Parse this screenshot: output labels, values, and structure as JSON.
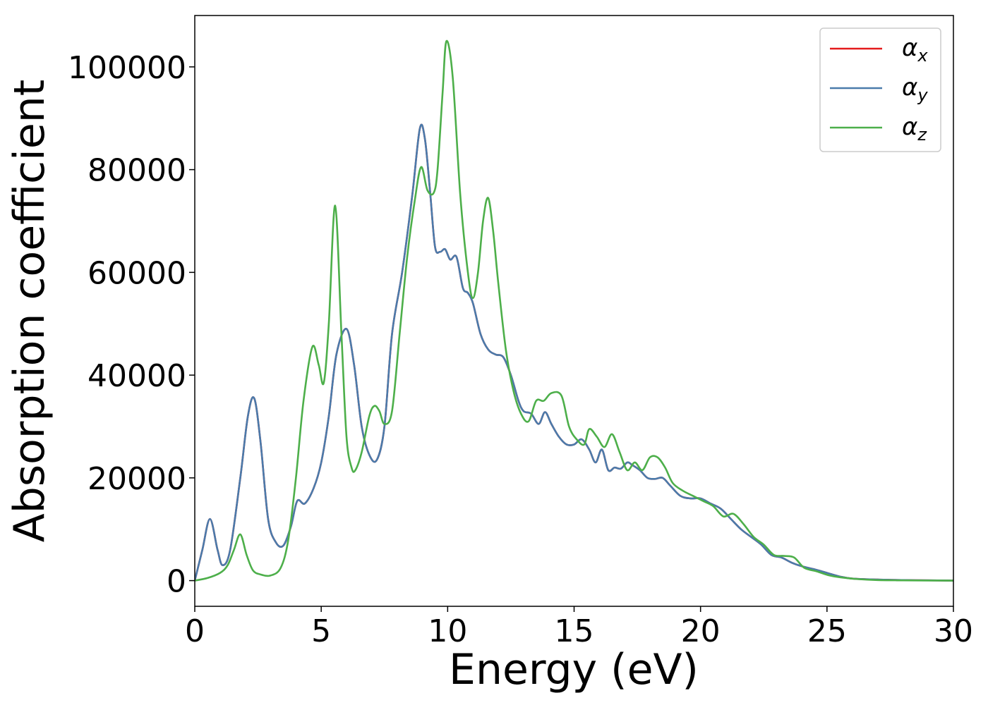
{
  "chart_data": {
    "type": "line",
    "xlabel": "Energy (eV)",
    "ylabel": "Absorption coefficient",
    "xlim": [
      0,
      30
    ],
    "ylim": [
      -5000,
      110000
    ],
    "xticks": [
      0,
      5,
      10,
      15,
      20,
      25,
      30
    ],
    "xtick_labels": [
      "0",
      "5",
      "10",
      "15",
      "20",
      "25",
      "30"
    ],
    "yticks": [
      0,
      20000,
      40000,
      60000,
      80000,
      100000
    ],
    "ytick_labels": [
      "0",
      "20000",
      "40000",
      "60000",
      "80000",
      "100000"
    ],
    "grid": false,
    "legend_position": "top-right",
    "series": [
      {
        "name": "α",
        "subscript": "x",
        "color": "#e41a1c",
        "x": [
          0,
          0.3,
          0.6,
          0.9,
          1.1,
          1.4,
          1.8,
          2.1,
          2.35,
          2.6,
          2.9,
          3.2,
          3.5,
          3.8,
          4.05,
          4.35,
          4.7,
          5.0,
          5.3,
          5.6,
          6.0,
          6.3,
          6.6,
          6.9,
          7.2,
          7.5,
          7.8,
          8.2,
          8.6,
          8.9,
          9.1,
          9.3,
          9.5,
          9.7,
          9.9,
          10.1,
          10.35,
          10.6,
          10.8,
          11.0,
          11.3,
          11.6,
          11.9,
          12.2,
          12.5,
          12.8,
          13.0,
          13.3,
          13.6,
          13.85,
          14.1,
          14.4,
          14.7,
          15.0,
          15.3,
          15.6,
          15.85,
          16.1,
          16.35,
          16.6,
          16.85,
          17.1,
          17.3,
          17.6,
          17.9,
          18.2,
          18.5,
          18.8,
          19.2,
          19.6,
          20.0,
          20.4,
          20.8,
          21.2,
          21.6,
          22.0,
          22.4,
          22.8,
          23.2,
          23.6,
          24.0,
          24.5,
          25.0,
          25.5,
          26.0,
          27.0,
          28.0,
          29.0,
          30.0
        ],
        "y": [
          0,
          6000,
          12000,
          6000,
          3000,
          6000,
          20000,
          32000,
          35500,
          27000,
          12000,
          7500,
          6800,
          10500,
          15500,
          15000,
          18000,
          23000,
          32000,
          44000,
          49000,
          42000,
          30000,
          24500,
          23500,
          30000,
          48000,
          60000,
          75000,
          88000,
          86000,
          76000,
          65000,
          64000,
          64500,
          62500,
          63000,
          57000,
          56000,
          54000,
          48000,
          45000,
          44000,
          43500,
          40000,
          35000,
          33000,
          32500,
          30500,
          32800,
          30500,
          28000,
          26500,
          26500,
          27500,
          25500,
          23000,
          25500,
          21500,
          22000,
          21800,
          23000,
          22500,
          21500,
          20000,
          19800,
          20000,
          18500,
          16500,
          16000,
          16000,
          15000,
          14000,
          12000,
          10000,
          8500,
          7000,
          5000,
          4500,
          3500,
          2800,
          2200,
          1500,
          800,
          400,
          200,
          100,
          50,
          0
        ]
      },
      {
        "name": "α",
        "subscript": "y",
        "color": "#4a7bab",
        "x": [
          0,
          0.3,
          0.6,
          0.9,
          1.1,
          1.4,
          1.8,
          2.1,
          2.35,
          2.6,
          2.9,
          3.2,
          3.5,
          3.8,
          4.05,
          4.35,
          4.7,
          5.0,
          5.3,
          5.6,
          6.0,
          6.3,
          6.6,
          6.9,
          7.2,
          7.5,
          7.8,
          8.2,
          8.6,
          8.9,
          9.1,
          9.3,
          9.5,
          9.7,
          9.9,
          10.1,
          10.35,
          10.6,
          10.8,
          11.0,
          11.3,
          11.6,
          11.9,
          12.2,
          12.5,
          12.8,
          13.0,
          13.3,
          13.6,
          13.85,
          14.1,
          14.4,
          14.7,
          15.0,
          15.3,
          15.6,
          15.85,
          16.1,
          16.35,
          16.6,
          16.85,
          17.1,
          17.3,
          17.6,
          17.9,
          18.2,
          18.5,
          18.8,
          19.2,
          19.6,
          20.0,
          20.4,
          20.8,
          21.2,
          21.6,
          22.0,
          22.4,
          22.8,
          23.2,
          23.6,
          24.0,
          24.5,
          25.0,
          25.5,
          26.0,
          27.0,
          28.0,
          29.0,
          30.0
        ],
        "y": [
          0,
          6000,
          12000,
          6000,
          3000,
          6000,
          20000,
          32000,
          35500,
          27000,
          12000,
          7500,
          6800,
          10500,
          15500,
          15000,
          18000,
          23000,
          32000,
          44000,
          49000,
          42000,
          30000,
          24500,
          23500,
          30000,
          48000,
          60000,
          75000,
          88000,
          86000,
          76000,
          65000,
          64000,
          64500,
          62500,
          63000,
          57000,
          56000,
          54000,
          48000,
          45000,
          44000,
          43500,
          40000,
          35000,
          33000,
          32500,
          30500,
          32800,
          30500,
          28000,
          26500,
          26500,
          27500,
          25500,
          23000,
          25500,
          21500,
          22000,
          21800,
          23000,
          22500,
          21500,
          20000,
          19800,
          20000,
          18500,
          16500,
          16000,
          16000,
          15000,
          14000,
          12000,
          10000,
          8500,
          7000,
          5000,
          4500,
          3500,
          2800,
          2200,
          1500,
          800,
          400,
          200,
          100,
          50,
          0
        ]
      },
      {
        "name": "α",
        "subscript": "z",
        "color": "#4daf4a",
        "x": [
          0,
          0.5,
          1.0,
          1.3,
          1.55,
          1.8,
          2.05,
          2.3,
          2.6,
          3.0,
          3.4,
          3.7,
          4.0,
          4.3,
          4.65,
          4.9,
          5.1,
          5.3,
          5.55,
          5.8,
          6.0,
          6.2,
          6.35,
          6.6,
          6.9,
          7.1,
          7.3,
          7.5,
          7.8,
          8.1,
          8.4,
          8.7,
          8.95,
          9.2,
          9.45,
          9.6,
          9.8,
          9.95,
          10.2,
          10.5,
          10.8,
          11.0,
          11.2,
          11.4,
          11.6,
          11.8,
          12.0,
          12.3,
          12.6,
          12.9,
          13.2,
          13.5,
          13.8,
          14.1,
          14.5,
          14.8,
          15.1,
          15.4,
          15.6,
          15.9,
          16.2,
          16.5,
          16.8,
          17.1,
          17.4,
          17.7,
          18.0,
          18.3,
          18.6,
          18.9,
          19.3,
          19.7,
          20.1,
          20.5,
          20.9,
          21.3,
          21.7,
          22.1,
          22.5,
          22.9,
          23.3,
          23.7,
          24.1,
          24.6,
          25.1,
          25.6,
          26.2,
          27.0,
          28.0,
          29.0,
          30.0
        ],
        "y": [
          0,
          500,
          1500,
          3000,
          6000,
          9000,
          5000,
          2000,
          1200,
          1000,
          2500,
          8000,
          20000,
          35000,
          45500,
          42000,
          38500,
          50000,
          73000,
          48000,
          28000,
          22000,
          21500,
          25000,
          32000,
          34000,
          33000,
          30500,
          33000,
          48000,
          63000,
          74000,
          80500,
          76000,
          75500,
          80000,
          95000,
          105000,
          98000,
          75000,
          60000,
          55000,
          60000,
          70000,
          74500,
          68000,
          58000,
          45000,
          37000,
          32500,
          31000,
          35000,
          35000,
          36500,
          36000,
          30000,
          27500,
          26500,
          29500,
          28000,
          26000,
          28500,
          25000,
          21500,
          23000,
          21500,
          24000,
          24000,
          22000,
          19000,
          17500,
          16500,
          15500,
          14500,
          12500,
          13000,
          11000,
          8500,
          7000,
          5000,
          4800,
          4500,
          2500,
          1800,
          1000,
          600,
          300,
          100,
          50,
          20,
          0
        ]
      }
    ]
  }
}
